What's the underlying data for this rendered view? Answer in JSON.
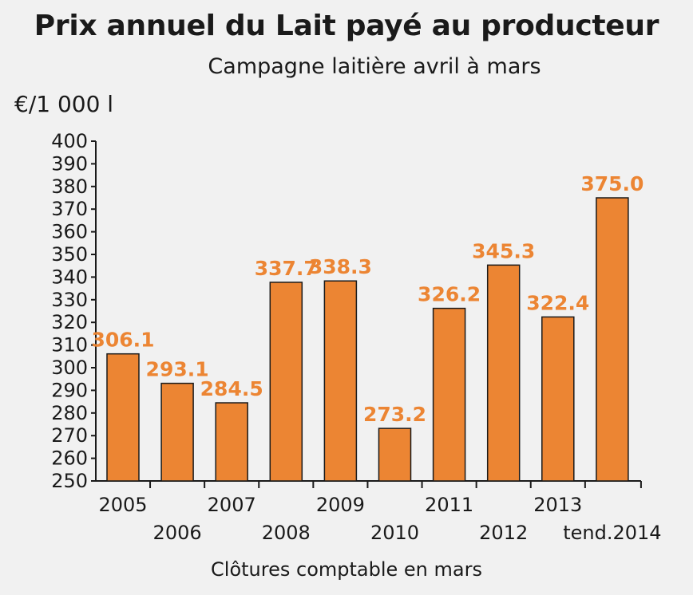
{
  "title": "Prix annuel du Lait payé au producteur",
  "subtitle": "Campagne laitière avril à mars",
  "unit_label": "€/1 000 l",
  "colors": {
    "bar": "#ec8533",
    "bar_border": "#1a1a1a",
    "data_label": "#ec8533",
    "background": "#f1f1f1"
  },
  "chart_data": {
    "type": "bar",
    "title": "Prix annuel du Lait payé au producteur",
    "subtitle": "Campagne laitière avril à mars",
    "ylabel": "€/1 000 l",
    "xlabel": "Clôtures comptable en mars",
    "ylim": [
      250,
      400
    ],
    "yticks": [
      250,
      260,
      270,
      280,
      290,
      300,
      310,
      320,
      330,
      340,
      350,
      360,
      370,
      380,
      390,
      400
    ],
    "categories": [
      "2005",
      "2006",
      "2007",
      "2008",
      "2009",
      "2010",
      "2011",
      "2012",
      "2013",
      "tend.2014"
    ],
    "values": [
      306.1,
      293.1,
      284.5,
      337.7,
      338.3,
      273.2,
      326.2,
      345.3,
      322.4,
      375.0
    ],
    "data_labels": [
      "306.1",
      "293.1",
      "284.5",
      "337.7",
      "338.3",
      "273.2",
      "326.2",
      "345.3",
      "322.4",
      "375.0"
    ],
    "grid": false,
    "legend": "none"
  }
}
